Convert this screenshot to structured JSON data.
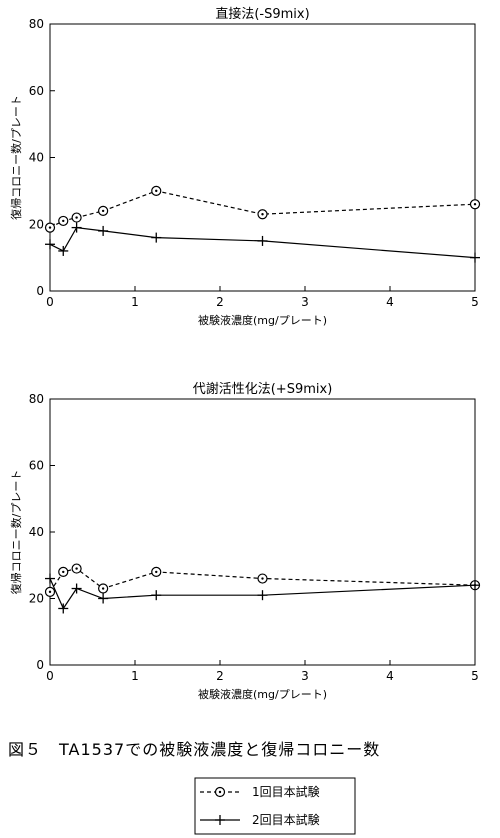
{
  "caption": "図５　TA1537での被験液濃度と復帰コロニー数",
  "legend": [
    {
      "label": "1回目本試験",
      "style": "dashed-circle"
    },
    {
      "label": "2回目本試験",
      "style": "solid-cross"
    }
  ],
  "chart_data": [
    {
      "type": "line",
      "title": "直接法(-S9mix)",
      "xlabel": "被験液濃度(mg/プレート)",
      "ylabel": "復帰コロニー数/プレート",
      "xlim": [
        0,
        5
      ],
      "ylim": [
        0,
        80
      ],
      "xticks": [
        0,
        1,
        2,
        3,
        4,
        5
      ],
      "yticks": [
        0,
        20,
        40,
        60,
        80
      ],
      "grid": false,
      "series": [
        {
          "name": "1回目本試験",
          "style": "dashed-circle",
          "x": [
            0,
            0.156,
            0.313,
            0.625,
            1.25,
            2.5,
            5
          ],
          "y": [
            19,
            21,
            22,
            24,
            30,
            23,
            26
          ]
        },
        {
          "name": "2回目本試験",
          "style": "solid-cross",
          "x": [
            0,
            0.156,
            0.313,
            0.625,
            1.25,
            2.5,
            5
          ],
          "y": [
            14,
            12,
            19,
            18,
            16,
            15,
            10
          ]
        }
      ]
    },
    {
      "type": "line",
      "title": "代謝活性化法(+S9mix)",
      "xlabel": "被験液濃度(mg/プレート)",
      "ylabel": "復帰コロニー数/プレート",
      "xlim": [
        0,
        5
      ],
      "ylim": [
        0,
        80
      ],
      "xticks": [
        0,
        1,
        2,
        3,
        4,
        5
      ],
      "yticks": [
        0,
        20,
        40,
        60,
        80
      ],
      "grid": false,
      "series": [
        {
          "name": "1回目本試験",
          "style": "dashed-circle",
          "x": [
            0,
            0.156,
            0.313,
            0.625,
            1.25,
            2.5,
            5
          ],
          "y": [
            22,
            28,
            29,
            23,
            28,
            26,
            24
          ]
        },
        {
          "name": "2回目本試験",
          "style": "solid-cross",
          "x": [
            0,
            0.156,
            0.313,
            0.625,
            1.25,
            2.5,
            5
          ],
          "y": [
            26,
            17,
            23,
            20,
            21,
            21,
            24
          ]
        }
      ]
    }
  ]
}
